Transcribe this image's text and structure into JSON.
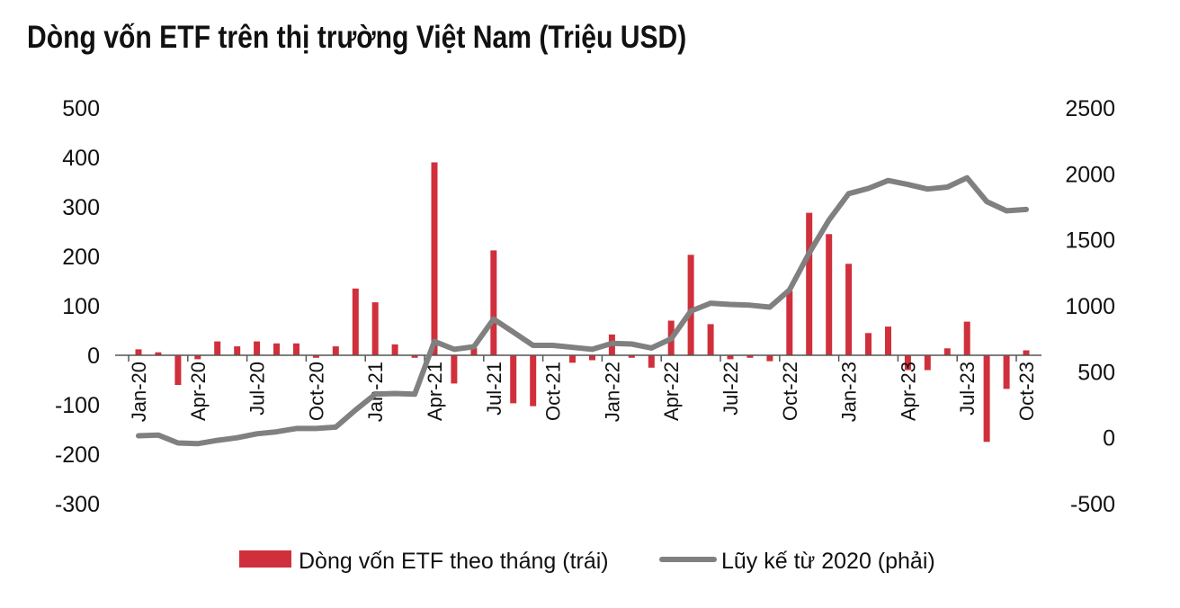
{
  "chart_data": {
    "type": "bar+line",
    "title": "Dòng vốn ETF trên thị trường Việt Nam (Triệu USD)",
    "left_axis": {
      "range": [
        -300,
        500
      ],
      "ticks": [
        "500",
        "400",
        "300",
        "200",
        "100",
        "0",
        "-100",
        "-200",
        "-300"
      ]
    },
    "right_axis": {
      "range": [
        -500,
        2500
      ],
      "ticks": [
        "2500",
        "2000",
        "1500",
        "1000",
        "500",
        "0",
        "-500"
      ]
    },
    "x_tick_labels": [
      "Jan-20",
      "Apr-20",
      "Jul-20",
      "Oct-20",
      "Jan-21",
      "Apr-21",
      "Jul-21",
      "Oct-21",
      "Jan-22",
      "Apr-22",
      "Jul-22",
      "Oct-22",
      "Jan-23",
      "Apr-23",
      "Jul-23",
      "Oct-23"
    ],
    "months": [
      "Jan-20",
      "Feb-20",
      "Mar-20",
      "Apr-20",
      "May-20",
      "Jun-20",
      "Jul-20",
      "Aug-20",
      "Sep-20",
      "Oct-20",
      "Nov-20",
      "Dec-20",
      "Jan-21",
      "Feb-21",
      "Mar-21",
      "Apr-21",
      "May-21",
      "Jun-21",
      "Jul-21",
      "Aug-21",
      "Sep-21",
      "Oct-21",
      "Nov-21",
      "Dec-21",
      "Jan-22",
      "Feb-22",
      "Mar-22",
      "Apr-22",
      "May-22",
      "Jun-22",
      "Jul-22",
      "Aug-22",
      "Sep-22",
      "Oct-22",
      "Nov-22",
      "Dec-22",
      "Jan-23",
      "Feb-23",
      "Mar-23",
      "Apr-23",
      "May-23",
      "Jun-23",
      "Jul-23",
      "Aug-23",
      "Sep-23",
      "Oct-23"
    ],
    "series": [
      {
        "name": "Dòng vốn ETF theo tháng (trái)",
        "type": "bar",
        "axis": "left",
        "color": "#d0303b",
        "values": [
          12,
          6,
          -60,
          -8,
          28,
          18,
          28,
          24,
          24,
          -5,
          18,
          135,
          107,
          22,
          -5,
          390,
          -57,
          15,
          212,
          -97,
          -103,
          0,
          -15,
          -10,
          42,
          -5,
          -25,
          70,
          203,
          63,
          -8,
          -5,
          -12,
          130,
          288,
          245,
          185,
          45,
          58,
          -30,
          -30,
          14,
          68,
          -175,
          -68,
          10
        ]
      },
      {
        "name": "Lũy kế từ 2020 (phải)",
        "type": "line",
        "axis": "right",
        "color": "#808080",
        "values": [
          15,
          20,
          -40,
          -45,
          -20,
          0,
          30,
          45,
          70,
          70,
          80,
          210,
          330,
          335,
          330,
          730,
          670,
          690,
          900,
          800,
          700,
          700,
          685,
          670,
          715,
          710,
          680,
          750,
          960,
          1020,
          1010,
          1005,
          990,
          1120,
          1400,
          1650,
          1850,
          1890,
          1950,
          1920,
          1885,
          1900,
          1970,
          1790,
          1720,
          1730
        ]
      }
    ],
    "legend_placement": "bottom-center"
  }
}
